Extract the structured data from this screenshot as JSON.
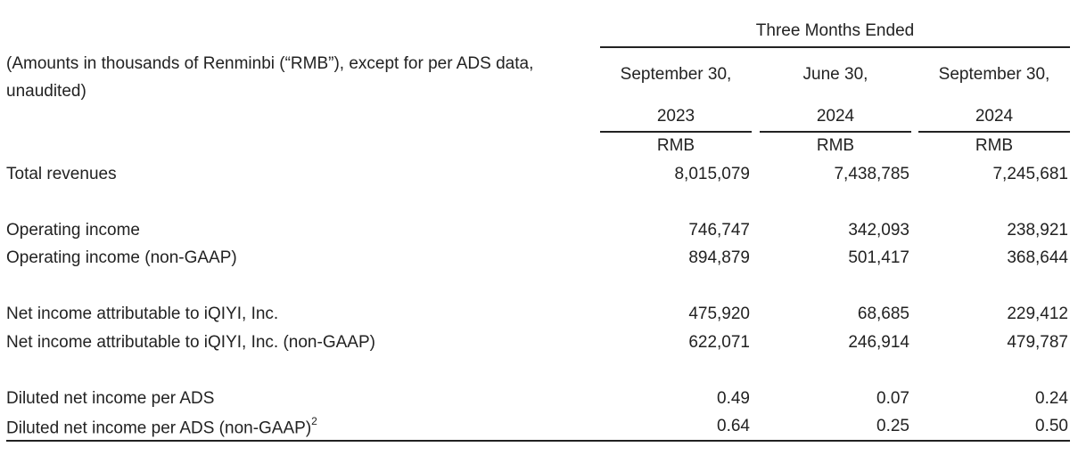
{
  "table": {
    "period_header": "Three Months Ended",
    "description": "(Amounts in thousands of Renminbi (“RMB”), except for per ADS data, unaudited)",
    "columns": [
      {
        "date": "September 30,",
        "year": "2023",
        "currency": "RMB"
      },
      {
        "date": "June 30,",
        "year": "2024",
        "currency": "RMB"
      },
      {
        "date": "September 30,",
        "year": "2024",
        "currency": "RMB"
      }
    ],
    "rows": [
      {
        "label": "Total revenues",
        "values": [
          "8,015,079",
          "7,438,785",
          "7,245,681"
        ]
      },
      {
        "label": "Operating income",
        "values": [
          "746,747",
          "342,093",
          "238,921"
        ]
      },
      {
        "label": "Operating income (non-GAAP)",
        "values": [
          "894,879",
          "501,417",
          "368,644"
        ]
      },
      {
        "label": "Net income attributable to iQIYI, Inc.",
        "values": [
          "475,920",
          "68,685",
          "229,412"
        ]
      },
      {
        "label": "Net income attributable to iQIYI, Inc. (non-GAAP)",
        "values": [
          "622,071",
          "246,914",
          "479,787"
        ]
      },
      {
        "label": "Diluted net income per ADS",
        "values": [
          "0.49",
          "0.07",
          "0.24"
        ]
      },
      {
        "label": "Diluted net income per ADS (non-GAAP)",
        "footnote": "2",
        "values": [
          "0.64",
          "0.25",
          "0.50"
        ]
      }
    ]
  }
}
